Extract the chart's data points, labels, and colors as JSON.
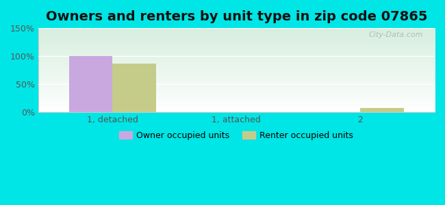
{
  "title": "Owners and renters by unit type in zip code 07865",
  "categories": [
    "1, detached",
    "1, attached",
    "2"
  ],
  "owner_values": [
    100,
    0,
    0
  ],
  "renter_values": [
    87,
    0,
    8
  ],
  "owner_color": "#c9a8e0",
  "renter_color": "#c5cc8a",
  "ylim": [
    0,
    150
  ],
  "yticks": [
    0,
    50,
    100,
    150
  ],
  "ytick_labels": [
    "0%",
    "50%",
    "100%",
    "150%"
  ],
  "legend_owner": "Owner occupied units",
  "legend_renter": "Renter occupied units",
  "bg_outer": "#00e5e5",
  "bg_inner_top": "#d6eedd",
  "bg_inner_bottom": "#ffffff",
  "watermark": "City-Data.com",
  "bar_width": 0.35,
  "title_fontsize": 14,
  "tick_fontsize": 9,
  "legend_fontsize": 9
}
